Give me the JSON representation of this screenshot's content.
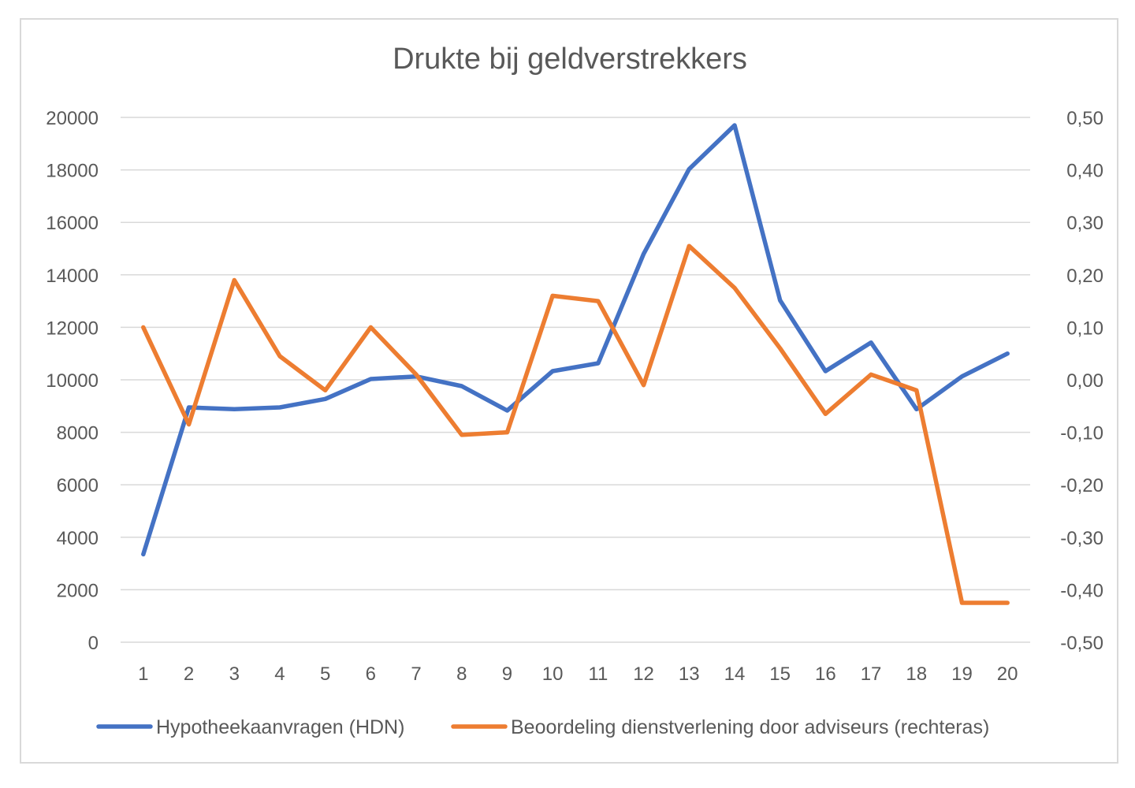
{
  "chart_data": {
    "type": "line",
    "title": "Drukte bij geldverstrekkers",
    "categories": [
      "1",
      "2",
      "3",
      "4",
      "5",
      "6",
      "7",
      "8",
      "9",
      "10",
      "11",
      "12",
      "13",
      "14",
      "15",
      "16",
      "17",
      "18",
      "19",
      "20"
    ],
    "y_left": {
      "ylim": [
        0,
        20000
      ],
      "ticks": [
        0,
        2000,
        4000,
        6000,
        8000,
        10000,
        12000,
        14000,
        16000,
        18000,
        20000
      ],
      "tick_labels": [
        "0",
        "2000",
        "4000",
        "6000",
        "8000",
        "10000",
        "12000",
        "14000",
        "16000",
        "18000",
        "20000"
      ]
    },
    "y_right": {
      "ylim": [
        -0.5,
        0.5
      ],
      "ticks": [
        -0.5,
        -0.4,
        -0.3,
        -0.2,
        -0.1,
        0.0,
        0.1,
        0.2,
        0.3,
        0.4,
        0.5
      ],
      "tick_labels": [
        "-0,50",
        "-0,40",
        "-0,30",
        "-0,20",
        "-0,10",
        "0,00",
        "0,10",
        "0,20",
        "0,30",
        "0,40",
        "0,50"
      ]
    },
    "grid": true,
    "legend_position": "bottom",
    "series": [
      {
        "name": "Hypotheekaanvragen (HDN)",
        "axis": "left",
        "color": "#4472c4",
        "values": [
          3350,
          8950,
          8880,
          8950,
          9270,
          10030,
          10130,
          9760,
          8830,
          10330,
          10630,
          14800,
          18030,
          19700,
          13030,
          10330,
          11420,
          8880,
          10130,
          11000
        ]
      },
      {
        "name": "Beoordeling dienstverlening door adviseurs (rechteras)",
        "axis": "right",
        "color": "#ed7d31",
        "values": [
          0.1,
          -0.085,
          0.19,
          0.045,
          -0.02,
          0.1,
          0.01,
          -0.105,
          -0.1,
          0.16,
          0.15,
          -0.01,
          0.255,
          0.175,
          0.06,
          -0.065,
          0.01,
          -0.02,
          -0.425,
          -0.425
        ]
      }
    ]
  }
}
